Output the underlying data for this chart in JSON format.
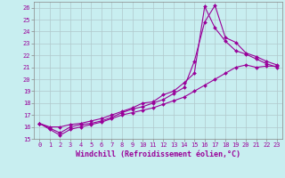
{
  "background_color": "#c8eef0",
  "grid_color": "#b0c8cc",
  "line_color": "#990099",
  "xlabel": "Windchill (Refroidissement éolien,°C)",
  "xlim": [
    -0.5,
    23.5
  ],
  "ylim": [
    15,
    26.5
  ],
  "yticks": [
    15,
    16,
    17,
    18,
    19,
    20,
    21,
    22,
    23,
    24,
    25,
    26
  ],
  "xticks": [
    0,
    1,
    2,
    3,
    4,
    5,
    6,
    7,
    8,
    9,
    10,
    11,
    12,
    13,
    14,
    15,
    16,
    17,
    18,
    19,
    20,
    21,
    22,
    23
  ],
  "line1_x": [
    0,
    1,
    2,
    3,
    4,
    5,
    6,
    7,
    8,
    9,
    10,
    11,
    12,
    13,
    14,
    15,
    16,
    17,
    18,
    19,
    20,
    21,
    22,
    23
  ],
  "line1_y": [
    16.3,
    15.8,
    15.3,
    15.8,
    16.0,
    16.2,
    16.4,
    16.7,
    17.0,
    17.2,
    17.4,
    17.6,
    17.9,
    18.2,
    18.5,
    19.0,
    19.5,
    20.0,
    20.5,
    21.0,
    21.2,
    21.0,
    21.1,
    21.1
  ],
  "line2_x": [
    0,
    1,
    2,
    3,
    4,
    5,
    6,
    7,
    8,
    9,
    10,
    11,
    12,
    13,
    14,
    15,
    16,
    17,
    18,
    19,
    20,
    21,
    22,
    23
  ],
  "line2_y": [
    16.3,
    15.9,
    15.5,
    16.0,
    16.2,
    16.3,
    16.5,
    16.8,
    17.2,
    17.5,
    17.7,
    18.0,
    18.3,
    18.8,
    19.3,
    21.5,
    24.8,
    26.2,
    23.5,
    23.1,
    22.2,
    21.9,
    21.5,
    21.2
  ],
  "line3_x": [
    0,
    1,
    2,
    3,
    4,
    5,
    6,
    7,
    8,
    9,
    10,
    11,
    12,
    13,
    14,
    15,
    16,
    17,
    18,
    19,
    20,
    21,
    22,
    23
  ],
  "line3_y": [
    16.3,
    16.0,
    16.0,
    16.2,
    16.3,
    16.5,
    16.7,
    17.0,
    17.3,
    17.6,
    18.0,
    18.1,
    18.7,
    19.0,
    19.7,
    20.5,
    26.1,
    24.3,
    23.2,
    22.4,
    22.1,
    21.7,
    21.3,
    21.0
  ],
  "marker": "D",
  "markersize": 2.0,
  "linewidth": 0.8,
  "tick_fontsize": 5.0,
  "label_fontsize": 6.0,
  "spine_color": "#888888"
}
